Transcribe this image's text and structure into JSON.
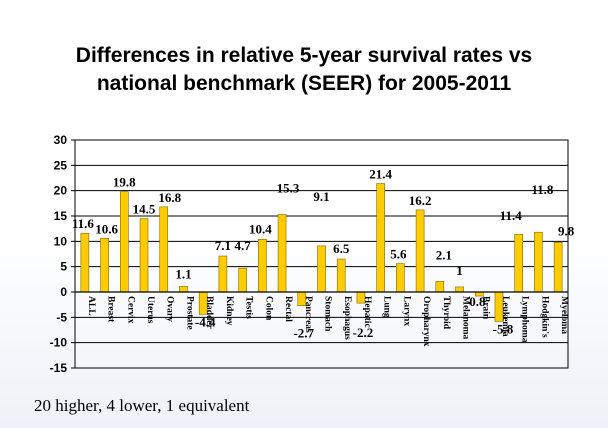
{
  "title_line1": "Differences in relative 5-year survival rates vs",
  "title_line2": "national benchmark (SEER) for 2005-2011",
  "caption": "20 higher,  4 lower, 1 equivalent",
  "colors": {
    "bar_fill": "#FFCC00",
    "bar_stroke": "#7f6a00",
    "gridline": "#000000",
    "axis": "#000000"
  },
  "chart_data": {
    "type": "bar",
    "title": "",
    "xlabel": "",
    "ylabel": "",
    "ylim": [
      -15,
      30
    ],
    "yticks": [
      -15,
      -10,
      -5,
      0,
      5,
      10,
      15,
      20,
      25,
      30
    ],
    "grid": true,
    "categories": [
      "ALL",
      "Breast",
      "Cervix",
      "Uterus",
      "Ovary",
      "Prostate",
      "Bladder",
      "Kidney",
      "Testis",
      "Colon",
      "Rectal",
      "Pancreas",
      "Stomach",
      "Esophagus",
      "Hepatic",
      "Lung",
      "Larynx",
      "Oropharynx",
      "Thyroid",
      "Melanoma",
      "Brain",
      "Leukemia",
      "Lymphoma",
      "Hodgkin's",
      "Myeloma"
    ],
    "values": [
      11.6,
      10.6,
      19.8,
      14.5,
      16.8,
      1.1,
      -4.4,
      7.1,
      4.7,
      10.4,
      15.3,
      -2.7,
      9.1,
      6.5,
      -2.2,
      21.4,
      5.6,
      16.2,
      2.1,
      1,
      -0.8,
      -5.8,
      11.4,
      11.8,
      9.8
    ],
    "data_labels": [
      "11.6",
      "10.6",
      "19.8",
      "14.5",
      "16.8",
      "1.1",
      "-4.4",
      "7.1",
      "4.7",
      "10.4",
      "15.3",
      "-2.7",
      "9.1",
      "6.5",
      "-2.2",
      "21.4",
      "5.6",
      "16.2",
      "2.1",
      "1",
      "-0.8",
      "-5.8",
      "11.4",
      "11.8",
      "9.8"
    ]
  }
}
